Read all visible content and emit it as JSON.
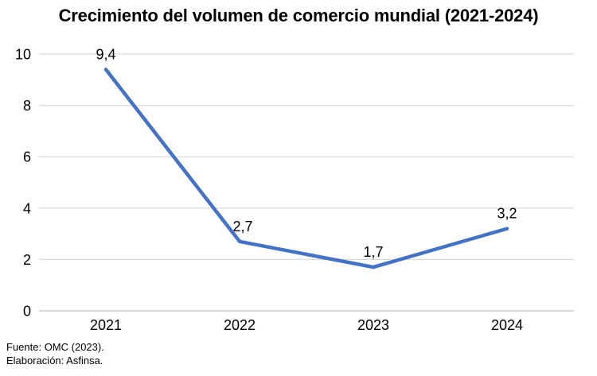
{
  "chart_data": {
    "type": "line",
    "title": "Crecimiento del volumen de comercio mundial (2021-2024)",
    "categories": [
      "2021",
      "2022",
      "2023",
      "2024"
    ],
    "values": [
      9.4,
      2.7,
      1.7,
      3.2
    ],
    "data_labels": [
      "9,4",
      "2,7",
      "1,7",
      "3,2"
    ],
    "y_ticks": [
      0,
      2,
      4,
      6,
      8,
      10
    ],
    "ylim": [
      0,
      10
    ],
    "xlabel": "",
    "ylabel": "",
    "grid": true,
    "legend": "none",
    "line_color": "#4472C4",
    "gridline_color": "#D9D9D9",
    "axis_line_color": "#BFBFBF",
    "label_color": "#000000"
  },
  "footer": {
    "source": "Fuente: OMC (2023).",
    "elaboration": "Elaboración: Asfinsa."
  }
}
